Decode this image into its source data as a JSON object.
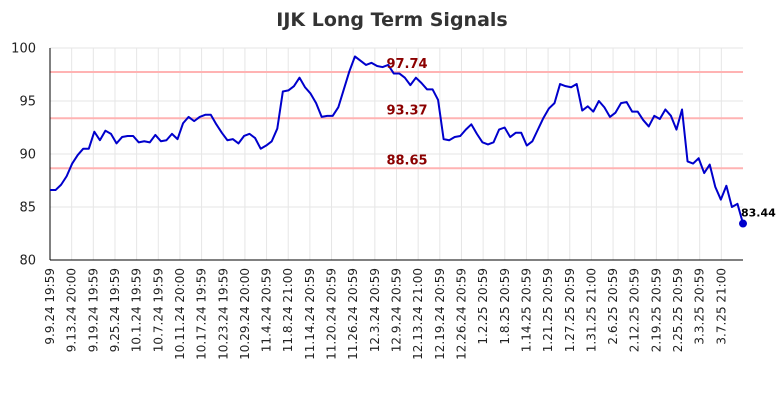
{
  "chart_data": {
    "type": "line",
    "title": "IJK Long Term Signals",
    "xlabel": "",
    "ylabel": "",
    "ylim": [
      80,
      100
    ],
    "yticks": [
      80,
      85,
      90,
      95,
      100
    ],
    "grid": true,
    "line_color": "#0000cc",
    "signal_color": "#8b0000",
    "signal_line_color": "#ffb3b3",
    "x_tick_labels": [
      "9.9.24 19:59",
      "9.13.24 20:00",
      "9.19.24 19:59",
      "9.25.24 19:59",
      "10.1.24 19:59",
      "10.7.24 19:59",
      "10.11.24 20:00",
      "10.17.24 19:59",
      "10.23.24 19:59",
      "10.29.24 20:00",
      "11.4.24 20:59",
      "11.8.24 21:00",
      "11.14.24 20:59",
      "11.20.24 20:59",
      "11.26.24 20:59",
      "12.3.24 20:59",
      "12.9.24 20:59",
      "12.13.24 21:00",
      "12.19.24 20:59",
      "12.26.24 20:59",
      "1.2.25 20:59",
      "1.8.25 20:59",
      "1.14.25 20:59",
      "1.21.25 20:59",
      "1.27.25 20:59",
      "1.31.25 21:00",
      "2.6.25 20:59",
      "2.12.25 20:59",
      "2.19.25 20:59",
      "2.25.25 20:59",
      "3.3.25 20:59",
      "3.7.25 21:00"
    ],
    "signals": [
      {
        "label": "97.74",
        "value": 97.74
      },
      {
        "label": "93.37",
        "value": 93.37
      },
      {
        "label": "88.65",
        "value": 88.65
      }
    ],
    "last_label": "83.44",
    "values": [
      86.6,
      86.6,
      87.1,
      87.9,
      89.1,
      89.9,
      90.5,
      90.5,
      92.1,
      91.3,
      92.2,
      91.9,
      91.0,
      91.6,
      91.7,
      91.7,
      91.1,
      91.2,
      91.1,
      91.8,
      91.2,
      91.3,
      91.9,
      91.4,
      92.9,
      93.5,
      93.1,
      93.5,
      93.7,
      93.7,
      92.8,
      92.0,
      91.3,
      91.4,
      91.0,
      91.7,
      91.9,
      91.5,
      90.5,
      90.8,
      91.2,
      92.4,
      95.9,
      96.0,
      96.4,
      97.2,
      96.3,
      95.7,
      94.8,
      93.5,
      93.6,
      93.6,
      94.4,
      96.1,
      97.8,
      99.2,
      98.8,
      98.4,
      98.6,
      98.3,
      98.2,
      98.4,
      97.6,
      97.6,
      97.2,
      96.5,
      97.2,
      96.7,
      96.1,
      96.1,
      95.1,
      91.4,
      91.3,
      91.6,
      91.7,
      92.3,
      92.8,
      91.9,
      91.1,
      90.9,
      91.1,
      92.3,
      92.5,
      91.6,
      92.0,
      92.0,
      90.8,
      91.2,
      92.3,
      93.4,
      94.3,
      94.8,
      96.6,
      96.4,
      96.3,
      96.6,
      94.1,
      94.5,
      94.0,
      95.0,
      94.4,
      93.5,
      93.9,
      94.8,
      94.9,
      94.0,
      94.0,
      93.2,
      92.6,
      93.6,
      93.3,
      94.2,
      93.6,
      92.3,
      94.2,
      89.3,
      89.1,
      89.6,
      88.2,
      89.0,
      86.9,
      85.7,
      87.0,
      85.0,
      85.3,
      83.44
    ]
  }
}
